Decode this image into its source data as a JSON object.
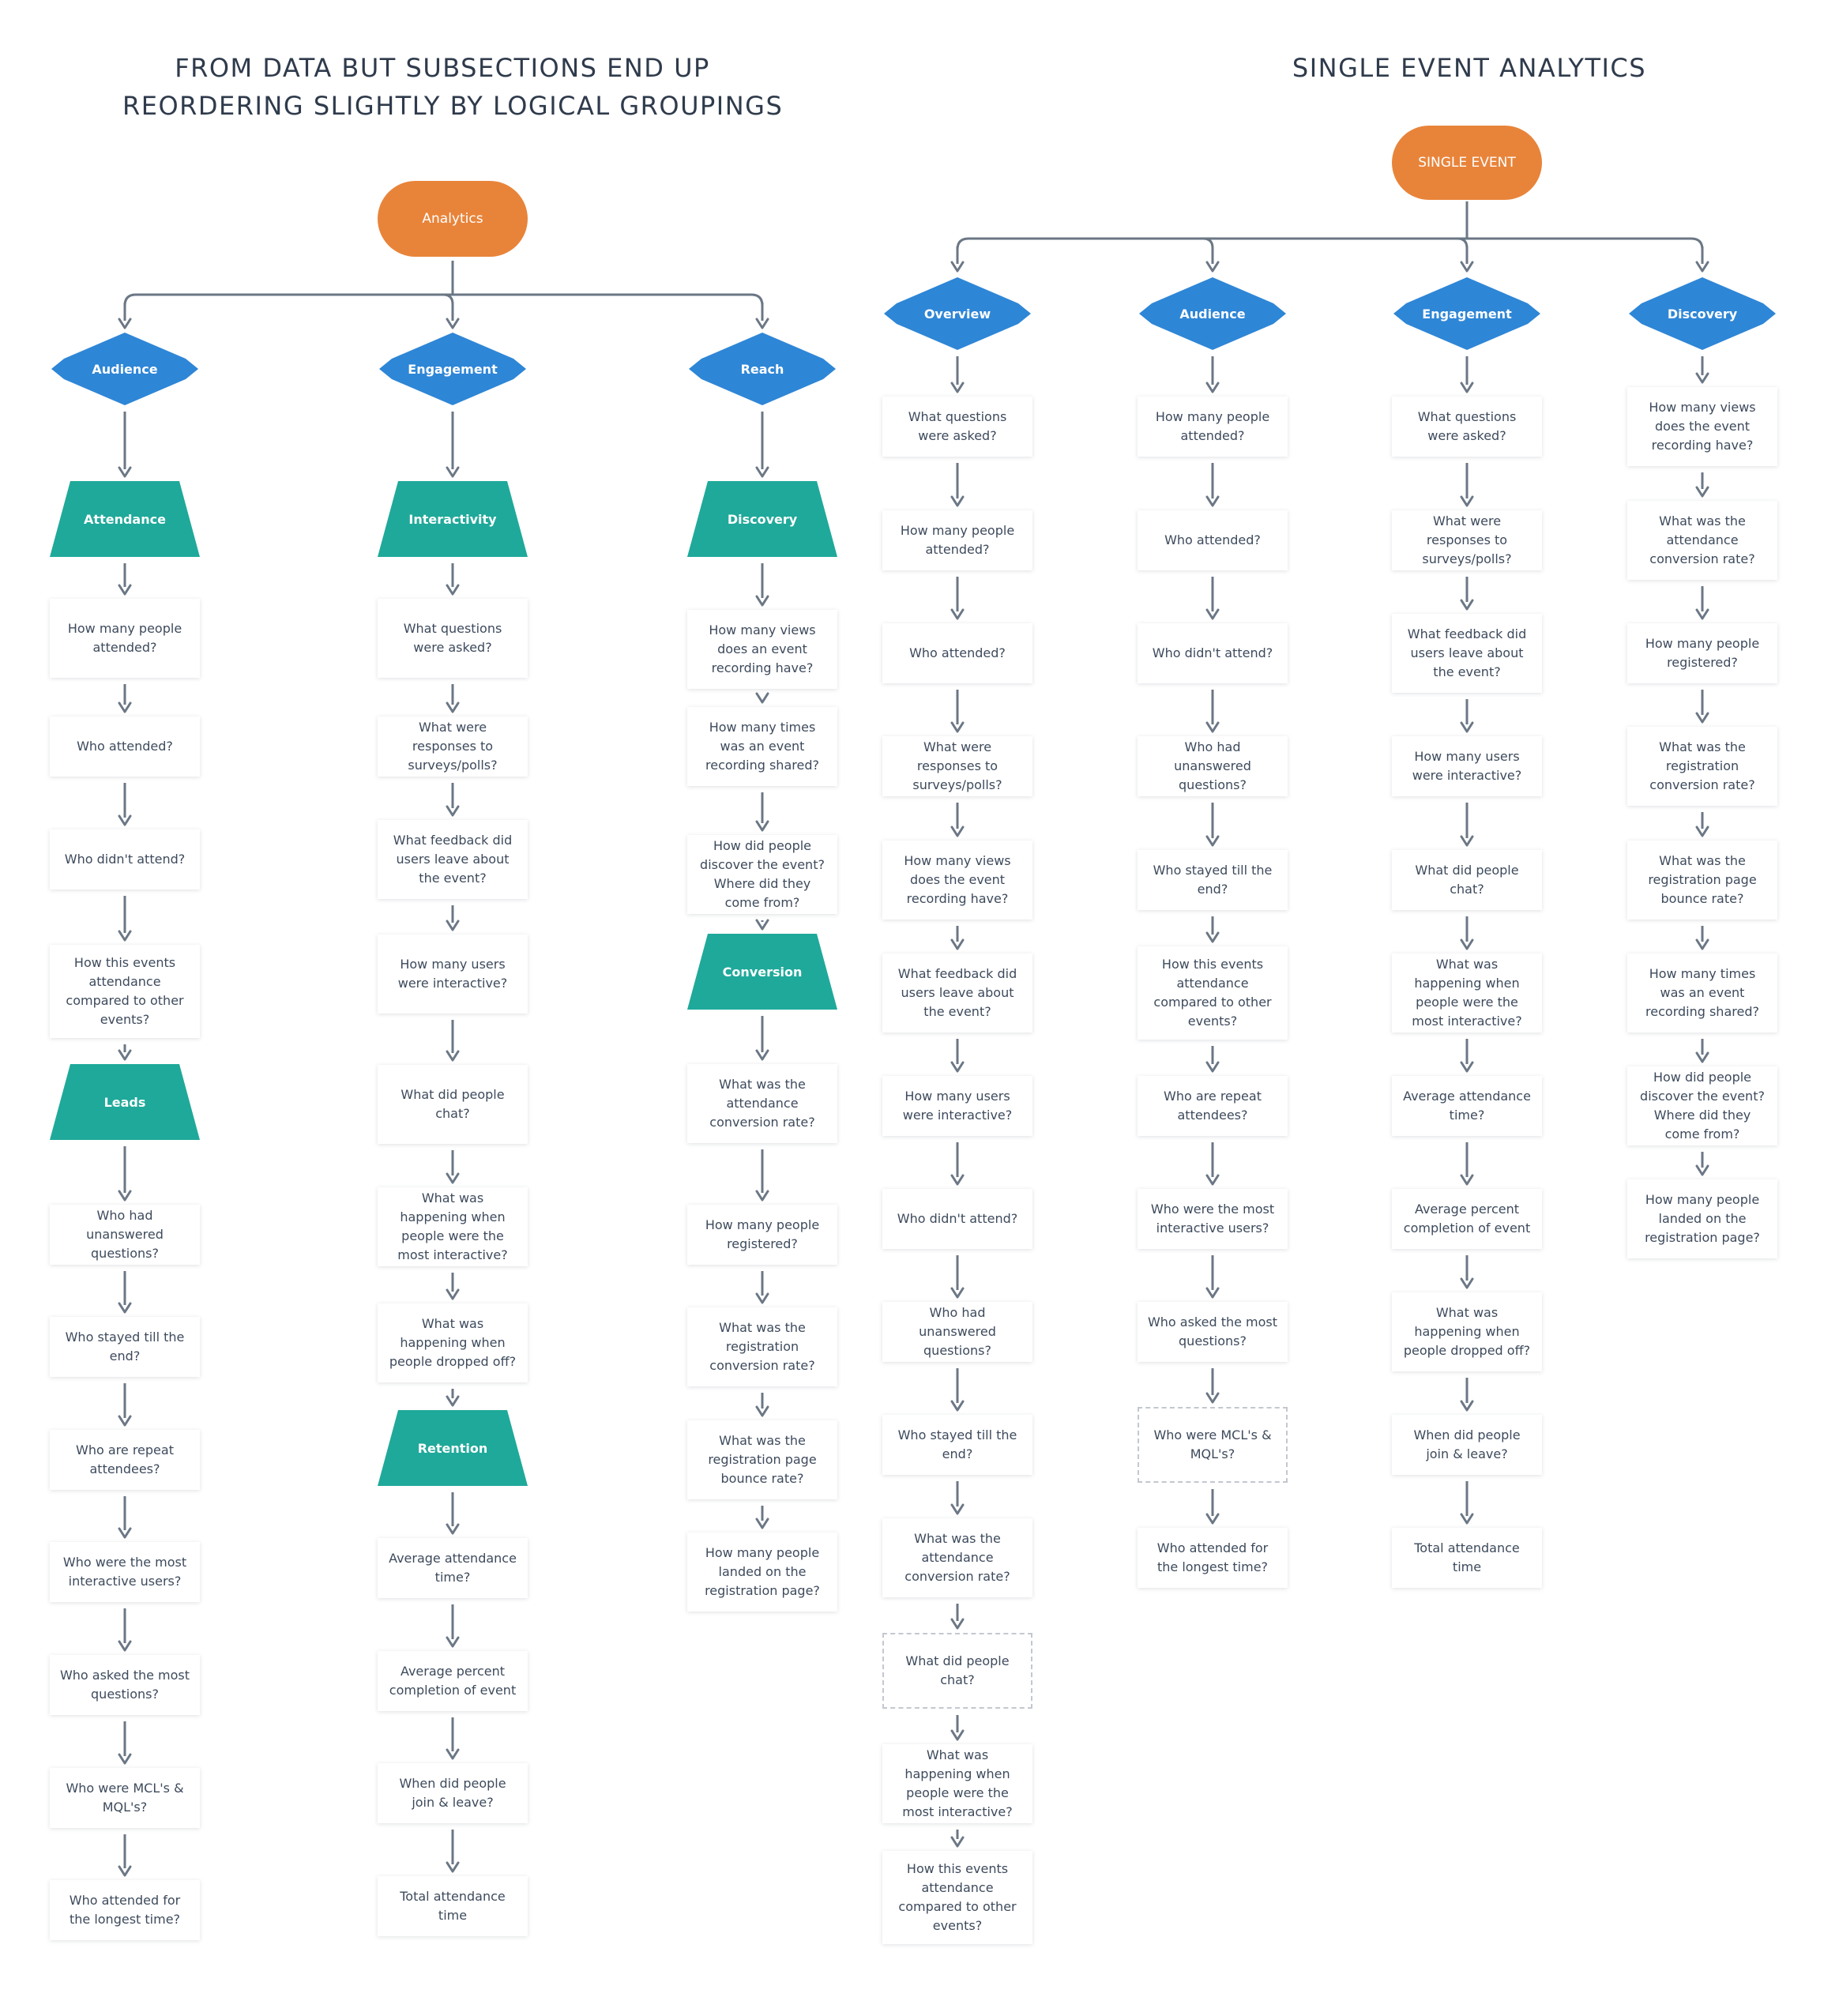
{
  "left_title": [
    "FROM DATA BUT SUBSECTIONS END UP",
    "REORDERING SLIGHTLY BY LOGICAL GROUPINGS"
  ],
  "right_title": "SINGLE EVENT ANALYTICS",
  "colors": {
    "root": "#e8843a",
    "category": "#2e86d6",
    "subcategory": "#1fa99a",
    "connector": "#6b7785",
    "text": "#3d4a5c"
  },
  "left_tree": {
    "root": "Analytics",
    "categories": [
      {
        "label": "Audience",
        "sections": [
          {
            "label": "Attendance",
            "items": [
              "How many people attended?",
              "Who attended?",
              "Who didn't attend?",
              "How this events attendance compared to other events?"
            ]
          },
          {
            "label": "Leads",
            "items": [
              "Who had unanswered questions?",
              "Who stayed till the end?",
              "Who are repeat attendees?",
              "Who were the most interactive users?",
              "Who asked the most questions?",
              "Who were MCL's & MQL's?",
              "Who attended for the longest time?"
            ]
          }
        ]
      },
      {
        "label": "Engagement",
        "sections": [
          {
            "label": "Interactivity",
            "items": [
              "What questions were asked?",
              "What were responses to surveys/polls?",
              "What feedback did users leave about the event?",
              "How many users were interactive?",
              "What did people chat?",
              "What was happening when people were the most interactive?",
              "What was happening when people dropped off?"
            ]
          },
          {
            "label": "Retention",
            "items": [
              "Average attendance time?",
              "Average percent completion of event",
              "When did people join & leave?",
              "Total attendance time"
            ]
          }
        ]
      },
      {
        "label": "Reach",
        "sections": [
          {
            "label": "Discovery",
            "items": [
              "How many views does an event recording have?",
              "How many times was an event recording shared?",
              "How did people discover the event? Where did they come from?"
            ]
          },
          {
            "label": "Conversion",
            "items": [
              "What was the attendance conversion rate?",
              "How many people registered?",
              "What was the registration conversion rate?",
              "What was the registration page bounce rate?",
              "How many people landed on the registration page?"
            ]
          }
        ]
      }
    ]
  },
  "right_tree": {
    "root": "SINGLE EVENT",
    "categories": [
      {
        "label": "Overview",
        "items": [
          "What questions were asked?",
          "How many people attended?",
          "Who attended?",
          "What were responses to surveys/polls?",
          "How many views does the event recording have?",
          "What feedback did users leave about the event?",
          "How many users were interactive?",
          "Who didn't attend?",
          "Who had unanswered questions?",
          "Who stayed till the end?",
          "What was the attendance conversion rate?",
          "What did people chat?",
          "What was happening when people were the most interactive?",
          "How this events attendance compared to other events?"
        ]
      },
      {
        "label": "Audience",
        "items": [
          "How many people attended?",
          "Who attended?",
          "Who didn't attend?",
          "Who had unanswered questions?",
          "Who stayed till the end?",
          "How this events attendance compared to other events?",
          "Who are repeat attendees?",
          "Who were the most interactive users?",
          "Who asked the most questions?",
          "Who were MCL's & MQL's?",
          "Who attended for the longest time?"
        ]
      },
      {
        "label": "Engagement",
        "items": [
          "What questions were asked?",
          "What were responses to surveys/polls?",
          "What feedback did users leave about the event?",
          "How many users were interactive?",
          "What did people chat?",
          "What was happening when people were the most interactive?",
          "Average attendance time?",
          "Average percent completion of event",
          "What was happening when people dropped off?",
          "When did people join & leave?",
          "Total attendance time"
        ]
      },
      {
        "label": "Discovery",
        "items": [
          "How many views does the event recording have?",
          "What was the attendance conversion rate?",
          "How many people registered?",
          "What was the registration conversion rate?",
          "What was the registration page bounce rate?",
          "How many times was an event recording shared?",
          "How did people discover the event? Where did they come from?",
          "How many people landed on the registration page?"
        ]
      }
    ]
  }
}
